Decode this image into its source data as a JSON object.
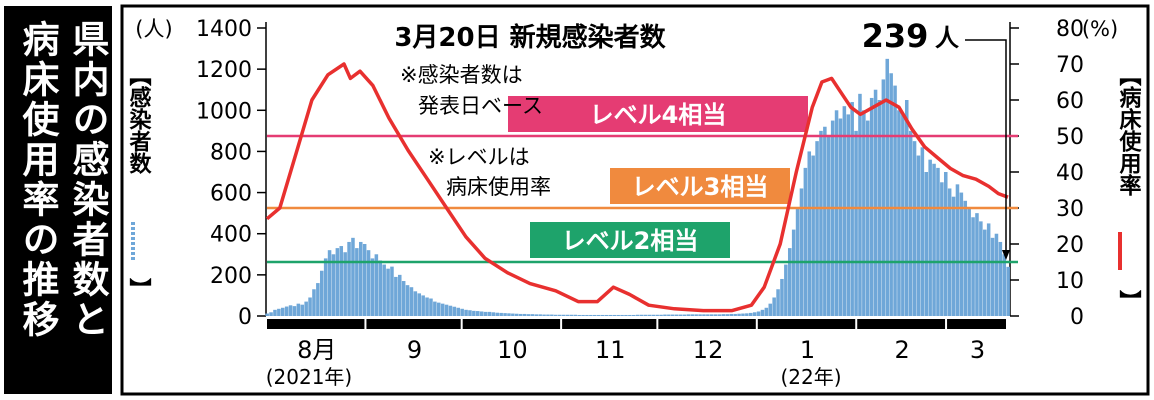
{
  "side_title": {
    "line1": "県内の感染者数と",
    "line2": "病床使用率の推移"
  },
  "colors": {
    "cases_bar": "#6fa7d8",
    "bed_line": "#e8302f",
    "level4": "#e53c73",
    "level3": "#f08a3e",
    "level2": "#1ea36b"
  },
  "chart_data": {
    "type": "bar",
    "title": "3月20日 新規感染者数",
    "headline_value": "239",
    "headline_unit": "人",
    "left_axis": {
      "unit": "(人)",
      "label": "【感染者数",
      "label_end": "】",
      "ticks": [
        "1400",
        "1200",
        "1000",
        "800",
        "600",
        "400",
        "200",
        "0"
      ],
      "range": [
        0,
        1400
      ]
    },
    "right_axis": {
      "unit": "(%)",
      "label": "【病床使用率",
      "label_end": "】",
      "ticks": [
        "80",
        "70",
        "60",
        "50",
        "40",
        "30",
        "20",
        "10",
        "0"
      ],
      "range": [
        0,
        80
      ]
    },
    "months": [
      "8月",
      "9",
      "10",
      "11",
      "12",
      "1",
      "2",
      "3"
    ],
    "year_labels": [
      "(2021年)",
      "(22年)"
    ],
    "notes": [
      "※感染者数は",
      "発表日ベース",
      "※レベルは",
      "病床使用率"
    ],
    "levels": [
      {
        "label": "レベル4相当",
        "value": 50
      },
      {
        "label": "レベル3相当",
        "value": 30
      },
      {
        "label": "レベル2相当",
        "value": 15
      }
    ],
    "series": [
      {
        "type": "bar",
        "axis": "left",
        "start": "2021-08-01",
        "values": [
          12,
          18,
          30,
          35,
          40,
          46,
          52,
          48,
          60,
          55,
          70,
          90,
          130,
          160,
          220,
          280,
          320,
          300,
          330,
          340,
          310,
          360,
          380,
          330,
          360,
          350,
          320,
          280,
          300,
          270,
          250,
          230,
          240,
          190,
          200,
          170,
          150,
          140,
          120,
          110,
          100,
          90,
          85,
          70,
          65,
          60,
          55,
          50,
          45,
          40,
          35,
          30,
          28,
          25,
          24,
          22,
          20,
          20,
          18,
          16,
          15,
          14,
          13,
          12,
          11,
          10,
          10,
          9,
          9,
          8,
          8,
          7,
          7,
          7,
          6,
          6,
          6,
          6,
          6,
          6,
          5,
          5,
          5,
          5,
          5,
          5,
          5,
          5,
          5,
          5,
          5,
          5,
          5,
          5,
          5,
          6,
          6,
          6,
          6,
          6,
          6,
          6,
          7,
          7,
          7,
          7,
          7,
          7,
          8,
          8,
          8,
          8,
          8,
          8,
          8,
          8,
          8,
          9,
          9,
          10,
          10,
          11,
          12,
          13,
          15,
          18,
          22,
          30,
          40,
          60,
          90,
          130,
          180,
          250,
          330,
          420,
          520,
          620,
          720,
          800,
          780,
          850,
          900,
          920,
          880,
          950,
          1000,
          960,
          1020,
          980,
          1040,
          900,
          1080,
          1000,
          950,
          1060,
          1100,
          1050,
          1150,
          1250,
          1180,
          1120,
          1000,
          980,
          1050,
          900,
          850,
          780,
          820,
          700,
          760,
          740,
          720,
          650,
          700,
          620,
          580,
          640,
          600,
          560,
          520,
          480,
          500,
          460,
          420,
          450,
          380,
          400,
          360,
          300,
          239
        ]
      },
      {
        "type": "line",
        "axis": "right",
        "start": "2021-08-01",
        "points": [
          {
            "x": "2021-08-01",
            "y": 27
          },
          {
            "x": "2021-08-05",
            "y": 30
          },
          {
            "x": "2021-08-10",
            "y": 45
          },
          {
            "x": "2021-08-15",
            "y": 60
          },
          {
            "x": "2021-08-20",
            "y": 67
          },
          {
            "x": "2021-08-25",
            "y": 70
          },
          {
            "x": "2021-08-27",
            "y": 66
          },
          {
            "x": "2021-08-30",
            "y": 68
          },
          {
            "x": "2021-09-03",
            "y": 64
          },
          {
            "x": "2021-09-08",
            "y": 55
          },
          {
            "x": "2021-09-14",
            "y": 46
          },
          {
            "x": "2021-09-20",
            "y": 38
          },
          {
            "x": "2021-09-26",
            "y": 30
          },
          {
            "x": "2021-10-02",
            "y": 22
          },
          {
            "x": "2021-10-08",
            "y": 16
          },
          {
            "x": "2021-10-15",
            "y": 12
          },
          {
            "x": "2021-10-22",
            "y": 9
          },
          {
            "x": "2021-10-30",
            "y": 7
          },
          {
            "x": "2021-11-06",
            "y": 4
          },
          {
            "x": "2021-11-12",
            "y": 4
          },
          {
            "x": "2021-11-17",
            "y": 8
          },
          {
            "x": "2021-11-22",
            "y": 6
          },
          {
            "x": "2021-11-28",
            "y": 3
          },
          {
            "x": "2021-12-06",
            "y": 2
          },
          {
            "x": "2021-12-15",
            "y": 1.5
          },
          {
            "x": "2021-12-24",
            "y": 1.5
          },
          {
            "x": "2021-12-30",
            "y": 3
          },
          {
            "x": "2022-01-03",
            "y": 8
          },
          {
            "x": "2022-01-08",
            "y": 20
          },
          {
            "x": "2022-01-13",
            "y": 40
          },
          {
            "x": "2022-01-18",
            "y": 58
          },
          {
            "x": "2022-01-21",
            "y": 65
          },
          {
            "x": "2022-01-24",
            "y": 66
          },
          {
            "x": "2022-01-27",
            "y": 62
          },
          {
            "x": "2022-01-30",
            "y": 58
          },
          {
            "x": "2022-02-02",
            "y": 56
          },
          {
            "x": "2022-02-06",
            "y": 58
          },
          {
            "x": "2022-02-10",
            "y": 60
          },
          {
            "x": "2022-02-14",
            "y": 58
          },
          {
            "x": "2022-02-18",
            "y": 52
          },
          {
            "x": "2022-02-22",
            "y": 47
          },
          {
            "x": "2022-02-26",
            "y": 44
          },
          {
            "x": "2022-03-02",
            "y": 41
          },
          {
            "x": "2022-03-06",
            "y": 39
          },
          {
            "x": "2022-03-10",
            "y": 38
          },
          {
            "x": "2022-03-14",
            "y": 36
          },
          {
            "x": "2022-03-17",
            "y": 34
          },
          {
            "x": "2022-03-20",
            "y": 33
          }
        ]
      }
    ],
    "grid": false,
    "legend": "none"
  }
}
